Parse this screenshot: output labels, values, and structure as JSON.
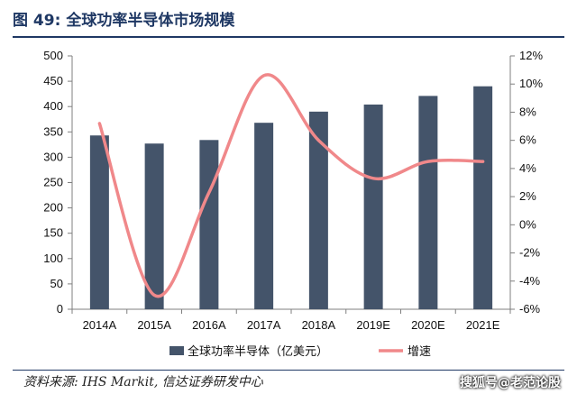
{
  "figure": {
    "number_label": "图 49:",
    "title": "全球功率半导体市场规模",
    "source": "资料来源: IHS Markit, 信达证券研发中心",
    "watermark": "搜狐号@老范论股"
  },
  "colors": {
    "bar": "#44546a",
    "line": "#f0888a",
    "title": "#1f3864",
    "axis": "#7f7f7f"
  },
  "chart_data": {
    "type": "bar+line",
    "categories": [
      "2014A",
      "2015A",
      "2016A",
      "2017A",
      "2018A",
      "2019E",
      "2020E",
      "2021E"
    ],
    "series": [
      {
        "name": "全球功率半导体（亿美元）",
        "type": "bar",
        "axis": "left",
        "values": [
          343,
          327,
          334,
          368,
          390,
          404,
          421,
          440
        ]
      },
      {
        "name": "增速",
        "type": "line",
        "axis": "right",
        "values": [
          7.2,
          -5.0,
          2.3,
          10.6,
          6.0,
          3.3,
          4.5,
          4.5
        ]
      }
    ],
    "y_left": {
      "min": 0,
      "max": 500,
      "step": 50,
      "tick_labels": [
        "0",
        "50",
        "100",
        "150",
        "200",
        "250",
        "300",
        "350",
        "400",
        "450",
        "500"
      ]
    },
    "y_right": {
      "min": -6,
      "max": 12,
      "step": 2,
      "tick_labels": [
        "-6%",
        "-4%",
        "-2%",
        "0%",
        "2%",
        "4%",
        "6%",
        "8%",
        "10%",
        "12%"
      ]
    },
    "legend": {
      "position": "bottom",
      "entries": [
        "全球功率半导体（亿美元）",
        "增速"
      ]
    },
    "grid": false
  }
}
